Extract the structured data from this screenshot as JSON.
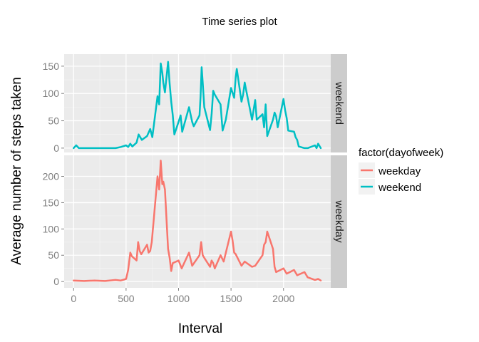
{
  "chart_data": {
    "type": "line",
    "title": "Time series plot",
    "xlabel": "Interval",
    "ylabel": "Average number of steps taken",
    "xlim": [
      -90,
      2450
    ],
    "x_ticks": [
      "0",
      "500",
      "1000",
      "1500",
      "2000"
    ],
    "x_tick_values": [
      0,
      500,
      1000,
      1500,
      2000
    ],
    "grid": true,
    "legend_position": "right",
    "legend": {
      "title": "factor(dayofweek)",
      "entries": [
        "weekday",
        "weekend"
      ]
    },
    "colors": {
      "weekday": "#f8766d",
      "weekend": "#00bfc4",
      "panel": "#ebebeb",
      "strip": "#cccccc"
    },
    "panels": [
      {
        "strip_label": "weekend",
        "series_name": "weekend",
        "ylim": [
          -8,
          172
        ],
        "y_ticks": [
          "0",
          "50",
          "100",
          "150"
        ],
        "y_tick_values": [
          0,
          50,
          100,
          150
        ],
        "x": [
          0,
          25,
          50,
          100,
          200,
          300,
          400,
          450,
          500,
          520,
          540,
          560,
          600,
          620,
          650,
          700,
          730,
          750,
          800,
          815,
          830,
          845,
          855,
          870,
          900,
          915,
          930,
          945,
          960,
          1000,
          1020,
          1035,
          1100,
          1130,
          1145,
          1200,
          1210,
          1220,
          1230,
          1245,
          1300,
          1315,
          1330,
          1345,
          1400,
          1420,
          1435,
          1450,
          1500,
          1530,
          1545,
          1555,
          1600,
          1615,
          1630,
          1645,
          1700,
          1715,
          1730,
          1745,
          1800,
          1815,
          1830,
          1845,
          1900,
          1915,
          1930,
          1945,
          2000,
          2015,
          2030,
          2045,
          2100,
          2115,
          2130,
          2145,
          2200,
          2230,
          2300,
          2315,
          2330,
          2355
        ],
        "y": [
          0,
          5,
          0,
          0,
          0,
          0,
          0,
          2,
          5,
          2,
          8,
          3,
          10,
          25,
          15,
          22,
          35,
          20,
          95,
          80,
          155,
          138,
          120,
          102,
          158,
          118,
          85,
          60,
          25,
          48,
          60,
          30,
          75,
          48,
          40,
          60,
          95,
          148,
          120,
          75,
          33,
          62,
          105,
          98,
          80,
          32,
          42,
          52,
          110,
          92,
          130,
          145,
          85,
          98,
          120,
          105,
          52,
          70,
          88,
          52,
          62,
          38,
          80,
          22,
          52,
          65,
          58,
          38,
          90,
          70,
          55,
          32,
          30,
          20,
          15,
          3,
          0,
          0,
          5,
          0,
          8,
          0
        ]
      },
      {
        "strip_label": "weekday",
        "series_name": "weekday",
        "ylim": [
          -12,
          240
        ],
        "y_ticks": [
          "0",
          "50",
          "100",
          "150",
          "200"
        ],
        "y_tick_values": [
          0,
          50,
          100,
          150,
          200
        ],
        "x": [
          0,
          100,
          200,
          300,
          400,
          450,
          500,
          520,
          540,
          555,
          600,
          615,
          630,
          645,
          700,
          715,
          730,
          745,
          800,
          815,
          830,
          845,
          855,
          870,
          900,
          915,
          930,
          945,
          1000,
          1030,
          1100,
          1130,
          1200,
          1215,
          1230,
          1245,
          1300,
          1315,
          1330,
          1345,
          1400,
          1430,
          1500,
          1515,
          1530,
          1545,
          1600,
          1630,
          1700,
          1730,
          1800,
          1815,
          1830,
          1845,
          1900,
          1915,
          1930,
          2000,
          2030,
          2100,
          2130,
          2200,
          2230,
          2300,
          2330,
          2355
        ],
        "y": [
          2,
          1,
          2,
          1,
          3,
          2,
          5,
          22,
          55,
          48,
          40,
          75,
          58,
          52,
          70,
          55,
          58,
          75,
          200,
          175,
          230,
          185,
          190,
          175,
          62,
          45,
          20,
          35,
          40,
          25,
          55,
          30,
          50,
          75,
          50,
          45,
          28,
          40,
          35,
          25,
          50,
          38,
          95,
          78,
          55,
          52,
          30,
          38,
          28,
          30,
          50,
          70,
          75,
          95,
          62,
          28,
          18,
          25,
          15,
          22,
          12,
          18,
          8,
          3,
          5,
          2
        ]
      }
    ]
  }
}
